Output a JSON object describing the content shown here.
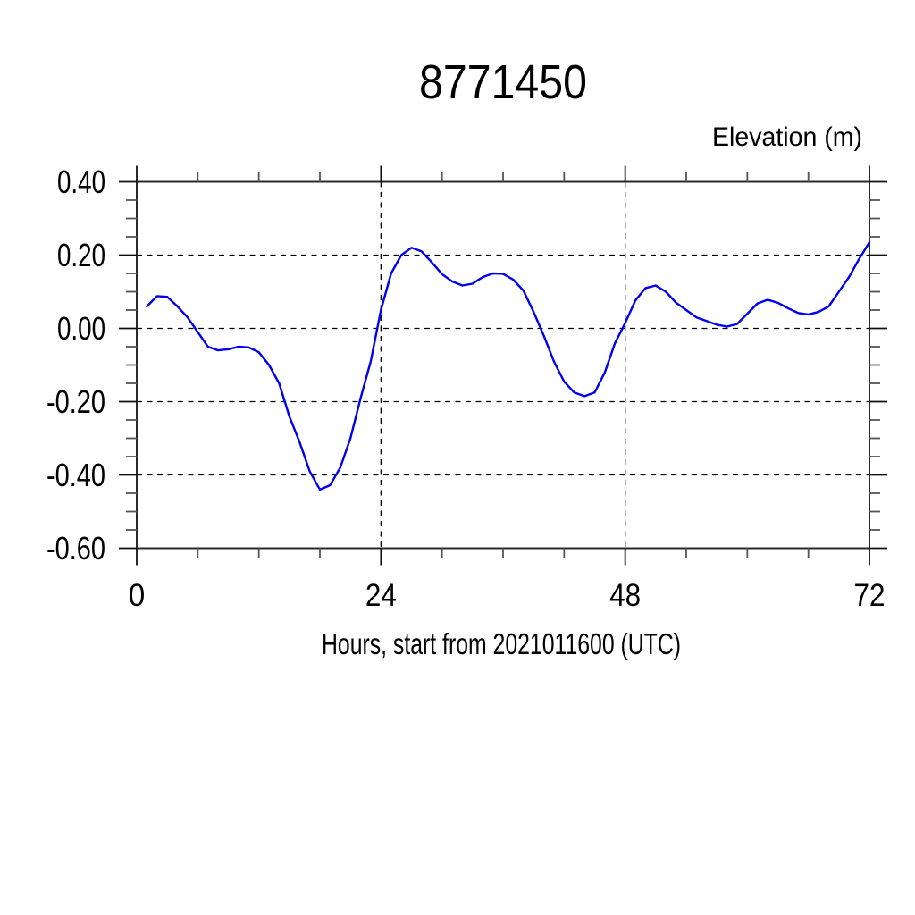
{
  "chart_data": {
    "type": "line",
    "title": "8771450",
    "right_axis_title": "Elevation (m)",
    "xlabel": "Hours, start from 2021011600 (UTC)",
    "ylabel": "",
    "xlim": [
      0,
      72
    ],
    "ylim": [
      -0.6,
      0.4
    ],
    "x_major_ticks": [
      0,
      24,
      48,
      72
    ],
    "x_tick_labels": [
      "0",
      "24",
      "48",
      "72"
    ],
    "x_minor_ticks": [
      6,
      12,
      18,
      30,
      36,
      42,
      54,
      60,
      66
    ],
    "y_major_ticks": [
      0.4,
      0.2,
      0.0,
      -0.2,
      -0.4,
      -0.6
    ],
    "y_tick_labels": [
      "0.40",
      "0.20",
      "0.00",
      "-0.20",
      "-0.40",
      "-0.60"
    ],
    "y_minor_ticks": [
      0.35,
      0.3,
      0.25,
      0.15,
      0.1,
      0.05,
      -0.05,
      -0.1,
      -0.15,
      -0.25,
      -0.3,
      -0.35,
      -0.45,
      -0.5,
      -0.55
    ],
    "grid": {
      "style": "dashed",
      "horizontal_at": [
        0.4,
        0.2,
        0.0,
        -0.2,
        -0.4,
        -0.6
      ],
      "vertical_at": [
        24,
        48
      ]
    },
    "legend": "none",
    "line_color": "#0000f0",
    "series": [
      {
        "name": "elevation",
        "x": [
          1,
          2,
          3,
          4,
          5,
          6,
          7,
          8,
          9,
          10,
          11,
          12,
          13,
          14,
          15,
          16,
          17,
          18,
          19,
          20,
          21,
          22,
          23,
          24,
          25,
          26,
          27,
          28,
          29,
          30,
          31,
          32,
          33,
          34,
          35,
          36,
          37,
          38,
          39,
          40,
          41,
          42,
          43,
          44,
          45,
          46,
          47,
          48,
          49,
          50,
          51,
          52,
          53,
          54,
          55,
          56,
          57,
          58,
          59,
          60,
          61,
          62,
          63,
          64,
          65,
          66,
          67,
          68,
          69,
          70,
          71,
          72
        ],
        "values": [
          0.06,
          0.088,
          0.086,
          0.06,
          0.03,
          -0.01,
          -0.05,
          -0.06,
          -0.057,
          -0.05,
          -0.052,
          -0.065,
          -0.1,
          -0.15,
          -0.24,
          -0.31,
          -0.39,
          -0.44,
          -0.428,
          -0.38,
          -0.3,
          -0.19,
          -0.09,
          0.05,
          0.15,
          0.2,
          0.22,
          0.21,
          0.18,
          0.148,
          0.128,
          0.117,
          0.122,
          0.14,
          0.15,
          0.149,
          0.133,
          0.103,
          0.045,
          -0.02,
          -0.09,
          -0.145,
          -0.175,
          -0.185,
          -0.175,
          -0.12,
          -0.04,
          0.015,
          0.076,
          0.11,
          0.117,
          0.1,
          0.07,
          0.05,
          0.03,
          0.02,
          0.01,
          0.005,
          0.012,
          0.04,
          0.068,
          0.078,
          0.07,
          0.055,
          0.042,
          0.038,
          0.045,
          0.06,
          0.1,
          0.14,
          0.19,
          0.235
        ]
      }
    ]
  }
}
